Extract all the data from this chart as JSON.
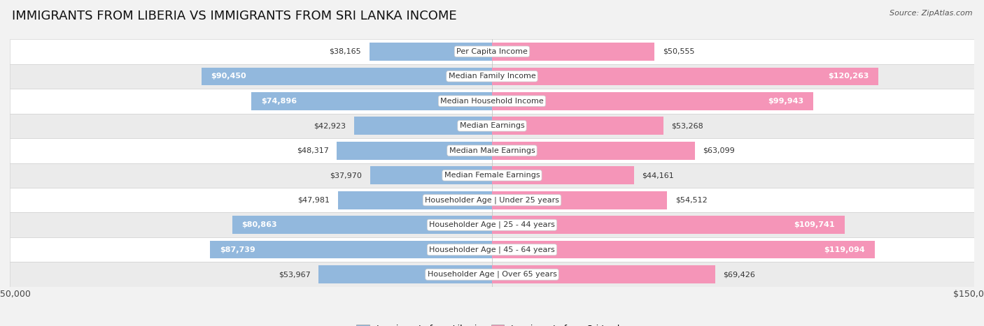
{
  "title": "IMMIGRANTS FROM LIBERIA VS IMMIGRANTS FROM SRI LANKA INCOME",
  "source": "Source: ZipAtlas.com",
  "categories": [
    "Per Capita Income",
    "Median Family Income",
    "Median Household Income",
    "Median Earnings",
    "Median Male Earnings",
    "Median Female Earnings",
    "Householder Age | Under 25 years",
    "Householder Age | 25 - 44 years",
    "Householder Age | 45 - 64 years",
    "Householder Age | Over 65 years"
  ],
  "liberia_values": [
    38165,
    90450,
    74896,
    42923,
    48317,
    37970,
    47981,
    80863,
    87739,
    53967
  ],
  "srilanka_values": [
    50555,
    120263,
    99943,
    53268,
    63099,
    44161,
    54512,
    109741,
    119094,
    69426
  ],
  "liberia_labels": [
    "$38,165",
    "$90,450",
    "$74,896",
    "$42,923",
    "$48,317",
    "$37,970",
    "$47,981",
    "$80,863",
    "$87,739",
    "$53,967"
  ],
  "srilanka_labels": [
    "$50,555",
    "$120,263",
    "$99,943",
    "$53,268",
    "$63,099",
    "$44,161",
    "$54,512",
    "$109,741",
    "$119,094",
    "$69,426"
  ],
  "liberia_color": "#92b8dd",
  "srilanka_color": "#f595b8",
  "max_val": 150000,
  "background_color": "#f2f2f2",
  "row_colors": [
    "#ffffff",
    "#ebebeb"
  ],
  "title_fontsize": 13,
  "label_fontsize": 8,
  "category_fontsize": 8,
  "legend_fontsize": 9,
  "source_fontsize": 8
}
